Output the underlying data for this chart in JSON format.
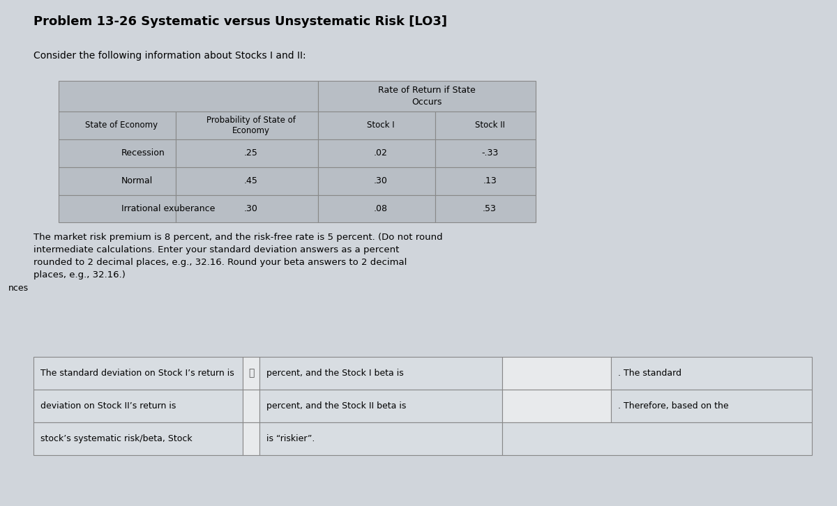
{
  "title": "Problem 13-26 Systematic versus Unsystematic Risk [LO3]",
  "subtitle": "Consider the following information about Stocks I and II:",
  "background_color": "#c8cdd4",
  "page_bg": "#d0d5db",
  "table_header_bg": "#a0a8b0",
  "table_row_bg": "#b8bec5",
  "table_alt_row_bg": "#c0c6cc",
  "table_header": [
    "State of Economy",
    "Probability of State of Economy",
    "Stock I",
    "Stock II"
  ],
  "table_col_header": [
    "Rate of Return if State Occurs",
    ""
  ],
  "states": [
    "Recession",
    "Normal",
    "Irrational exuberance"
  ],
  "probabilities": [
    ".25",
    ".45",
    ".30"
  ],
  "stock_i": [
    ".02",
    ".30",
    ".08"
  ],
  "stock_ii": [
    "-.33",
    ".13",
    ".53"
  ],
  "instruction_text": "The market risk premium is 8 percent, and the risk-free rate is 5 percent. (Do not round\nintermediate calculations. Enter your standard deviation answers as a percent\nrounded to 2 decimal places, e.g., 32.16. Round your beta answers to 2 decimal\nplaces, e.g., 32.16.)",
  "answer_row1_left": "The standard deviation on Stock I’s return is",
  "answer_row1_mid": "percent, and the Stock I beta is",
  "answer_row1_right": ". The standard",
  "answer_row2_left": "deviation on Stock II’s return is",
  "answer_row2_mid": "percent, and the Stock II beta is",
  "answer_row2_right": ". Therefore, based on the",
  "answer_row3_left": "stock’s systematic risk/beta, Stock",
  "answer_row3_mid": "is “riskier”.",
  "answer_row3_right": "",
  "left_margin_text": "nces",
  "title_fontsize": 13,
  "body_fontsize": 10,
  "small_fontsize": 9
}
